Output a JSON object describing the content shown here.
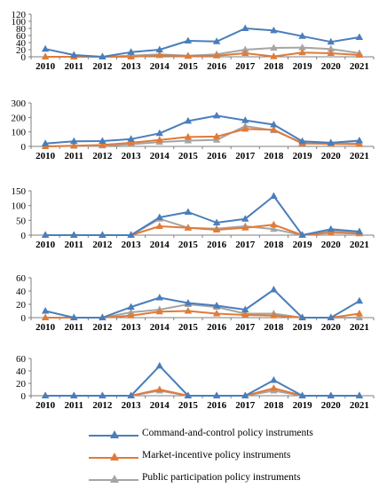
{
  "chart_data": [
    {
      "type": "line",
      "categories": [
        "2010",
        "2011",
        "2012",
        "2013",
        "2014",
        "2015",
        "2016",
        "2017",
        "2018",
        "2019",
        "2020",
        "2021"
      ],
      "ylim": [
        0,
        120
      ],
      "yticks": [
        "0",
        "20",
        "40",
        "60",
        "80",
        "100",
        "120"
      ],
      "series": [
        {
          "name": "Command-and-control policy instruments",
          "values": [
            22,
            5,
            0,
            13,
            20,
            45,
            43,
            80,
            74,
            58,
            42,
            55
          ]
        },
        {
          "name": "Market-incentive policy instruments",
          "values": [
            0,
            0,
            0,
            0,
            4,
            2,
            3,
            10,
            1,
            12,
            10,
            5
          ]
        },
        {
          "name": "Public participation policy instruments",
          "values": [
            0,
            0,
            0,
            3,
            7,
            3,
            7,
            20,
            25,
            26,
            22,
            10
          ]
        }
      ]
    },
    {
      "type": "line",
      "categories": [
        "2010",
        "2011",
        "2012",
        "2013",
        "2014",
        "2015",
        "2016",
        "2017",
        "2018",
        "2019",
        "2020",
        "2021"
      ],
      "ylim": [
        0,
        300
      ],
      "yticks": [
        "0",
        "100",
        "200",
        "300"
      ],
      "series": [
        {
          "name": "Command-and-control policy instruments",
          "values": [
            20,
            35,
            37,
            50,
            90,
            175,
            212,
            180,
            150,
            35,
            25,
            40
          ]
        },
        {
          "name": "Market-incentive policy instruments",
          "values": [
            0,
            5,
            10,
            25,
            45,
            65,
            68,
            120,
            115,
            20,
            18,
            15
          ]
        },
        {
          "name": "Public participation policy instruments",
          "values": [
            0,
            3,
            5,
            15,
            30,
            40,
            45,
            140,
            110,
            25,
            22,
            20
          ]
        }
      ]
    },
    {
      "type": "line",
      "categories": [
        "2010",
        "2011",
        "2012",
        "2013",
        "2014",
        "2015",
        "2016",
        "2017",
        "2018",
        "2019",
        "2020",
        "2021"
      ],
      "ylim": [
        0,
        150
      ],
      "yticks": [
        "0",
        "50",
        "100",
        "150"
      ],
      "series": [
        {
          "name": "Command-and-control policy instruments",
          "values": [
            0,
            0,
            0,
            0,
            60,
            78,
            42,
            55,
            132,
            0,
            20,
            12
          ]
        },
        {
          "name": "Market-incentive policy instruments",
          "values": [
            0,
            0,
            0,
            0,
            30,
            25,
            18,
            25,
            35,
            0,
            8,
            5
          ]
        },
        {
          "name": "Public participation policy instruments",
          "values": [
            0,
            0,
            0,
            0,
            55,
            25,
            22,
            30,
            20,
            0,
            15,
            8
          ]
        }
      ]
    },
    {
      "type": "line",
      "categories": [
        "2010",
        "2011",
        "2012",
        "2013",
        "2014",
        "2015",
        "2016",
        "2017",
        "2018",
        "2019",
        "2020",
        "2021"
      ],
      "ylim": [
        0,
        60
      ],
      "yticks": [
        "0",
        "20",
        "40",
        "60"
      ],
      "series": [
        {
          "name": "Command-and-control policy instruments",
          "values": [
            10,
            0,
            0,
            16,
            30,
            22,
            18,
            12,
            42,
            0,
            0,
            25
          ]
        },
        {
          "name": "Market-incentive policy instruments",
          "values": [
            0,
            0,
            0,
            3,
            9,
            10,
            6,
            4,
            3,
            0,
            0,
            6
          ]
        },
        {
          "name": "Public participation policy instruments",
          "values": [
            0,
            0,
            0,
            8,
            12,
            20,
            16,
            6,
            6,
            0,
            0,
            0
          ]
        }
      ]
    },
    {
      "type": "line",
      "categories": [
        "2010",
        "2011",
        "2012",
        "2013",
        "2014",
        "2015",
        "2016",
        "2017",
        "2018",
        "2019",
        "2020",
        "2021"
      ],
      "ylim": [
        0,
        60
      ],
      "yticks": [
        "0",
        "20",
        "40",
        "60"
      ],
      "series": [
        {
          "name": "Command-and-control policy instruments",
          "values": [
            0,
            0,
            0,
            0,
            48,
            0,
            0,
            0,
            25,
            0,
            0,
            0
          ]
        },
        {
          "name": "Market-incentive policy instruments",
          "values": [
            0,
            0,
            0,
            0,
            10,
            0,
            0,
            0,
            12,
            0,
            0,
            0
          ]
        },
        {
          "name": "Public participation policy instruments",
          "values": [
            0,
            0,
            0,
            0,
            8,
            0,
            0,
            0,
            8,
            0,
            0,
            0
          ]
        }
      ]
    }
  ],
  "legend": {
    "items": [
      {
        "label": "Command-and-control policy instruments",
        "color": "#4a7ebb"
      },
      {
        "label": "Market-incentive policy instruments",
        "color": "#e07b39"
      },
      {
        "label": "Public participation policy instruments",
        "color": "#a5a5a5"
      }
    ]
  },
  "colors": {
    "series": [
      "#4a7ebb",
      "#e07b39",
      "#a5a5a5"
    ],
    "axis": "#7f7f7f"
  }
}
